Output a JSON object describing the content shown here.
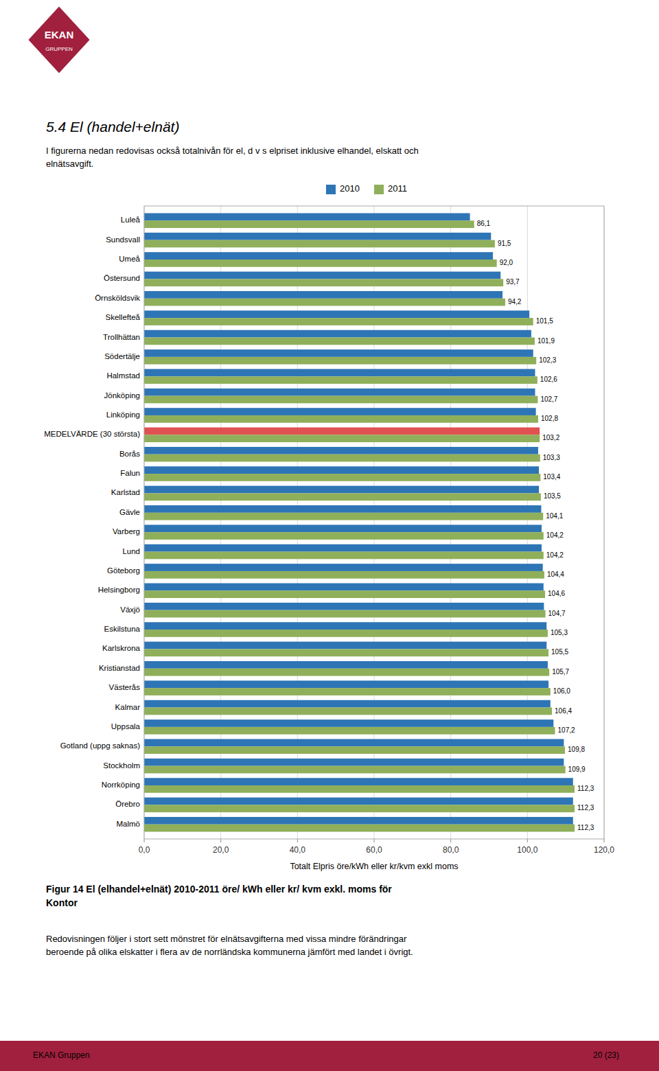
{
  "chart_data": {
    "type": "bar",
    "orientation": "horizontal",
    "categories": [
      "Luleå",
      "Sundsvall",
      "Umeå",
      "Östersund",
      "Örnsköldsvik",
      "Skellefteå",
      "Trollhättan",
      "Södertälje",
      "Halmstad",
      "Jönköping",
      "Linköping",
      "MEDELVÄRDE (30 största)",
      "Borås",
      "Falun",
      "Karlstad",
      "Gävle",
      "Varberg",
      "Lund",
      "Göteborg",
      "Helsingborg",
      "Växjö",
      "Eskilstuna",
      "Karlskrona",
      "Kristianstad",
      "Västerås",
      "Kalmar",
      "Uppsala",
      "Gotland (uppg saknas)",
      "Stockholm",
      "Norrköping",
      "Örebro",
      "Malmö"
    ],
    "series": [
      {
        "name": "2010",
        "color": "#2E75B6",
        "colors": [
          "#2E75B6",
          "#2E75B6",
          "#2E75B6",
          "#2E75B6",
          "#2E75B6",
          "#2E75B6",
          "#2E75B6",
          "#2E75B6",
          "#2E75B6",
          "#2E75B6",
          "#2E75B6",
          "#E05252",
          "#2E75B6",
          "#2E75B6",
          "#2E75B6",
          "#2E75B6",
          "#2E75B6",
          "#2E75B6",
          "#2E75B6",
          "#2E75B6",
          "#2E75B6",
          "#2E75B6",
          "#2E75B6",
          "#2E75B6",
          "#2E75B6",
          "#2E75B6",
          "#2E75B6",
          "#2E75B6",
          "#2E75B6",
          "#2E75B6",
          "#2E75B6",
          "#2E75B6"
        ],
        "values": [
          85.0,
          90.5,
          91.0,
          93.0,
          93.5,
          100.5,
          101.0,
          101.5,
          102.0,
          102.0,
          102.2,
          103.2,
          102.8,
          103.0,
          103.0,
          103.6,
          103.7,
          103.7,
          104.0,
          104.2,
          104.3,
          105.0,
          105.0,
          105.3,
          105.5,
          106.0,
          106.8,
          109.5,
          109.5,
          111.9,
          111.9,
          111.9
        ]
      },
      {
        "name": "2011",
        "color": "#8FAF5A",
        "data_labels": true,
        "values": [
          86.1,
          91.5,
          92.0,
          93.7,
          94.2,
          101.5,
          101.9,
          102.3,
          102.6,
          102.7,
          102.8,
          103.2,
          103.3,
          103.4,
          103.5,
          104.1,
          104.2,
          104.2,
          104.4,
          104.6,
          104.7,
          105.3,
          105.5,
          105.7,
          106.0,
          106.4,
          107.2,
          109.8,
          109.9,
          112.3,
          112.3,
          112.3
        ],
        "value_labels": [
          "86,1",
          "91,5",
          "92,0",
          "93,7",
          "94,2",
          "101,5",
          "101,9",
          "102,3",
          "102,6",
          "102,7",
          "102,8",
          "103,2",
          "103,3",
          "103,4",
          "103,5",
          "104,1",
          "104,2",
          "104,2",
          "104,4",
          "104,6",
          "104,7",
          "105,3",
          "105,5",
          "105,7",
          "106,0",
          "106,4",
          "107,2",
          "109,8",
          "109,9",
          "112,3",
          "112,3",
          "112,3"
        ]
      }
    ],
    "x_label": "Totalt Elpris öre/kWh eller kr/kvm exkl moms",
    "xlim": [
      0,
      120
    ],
    "xticks": [
      {
        "value": 0,
        "label": "0,0"
      },
      {
        "value": 20,
        "label": "20,0"
      },
      {
        "value": 40,
        "label": "40,0"
      },
      {
        "value": 60,
        "label": "60,0"
      },
      {
        "value": 80,
        "label": "80,0"
      },
      {
        "value": 100,
        "label": "100,0"
      },
      {
        "value": 120,
        "label": "120,0"
      }
    ],
    "grid": true,
    "legend": "top"
  },
  "page_texts": {
    "logo": [
      "EKAN",
      "GRUPPEN"
    ],
    "section_title": "5.4  El (handel+elnät)",
    "section_body": [
      "I figurerna nedan redovisas också totalnivån för el, d v s elpriset inklusive elhandel, elskatt och",
      "elnätsavgift."
    ],
    "caption": "Figur 14 El (elhandel+elnät) 2010-2011 öre/ kWh eller kr/ kvm exkl. moms för\nKontor",
    "body_text": [
      "Redovisningen följer i stort sett mönstret för elnätsavgifterna med vissa mindre förändringar",
      "beroende på olika elskatter i flera av de norrländska kommunerna jämfört med landet i övrigt."
    ],
    "footer_left": "EKAN Gruppen",
    "footer_right": "20 (23)"
  }
}
